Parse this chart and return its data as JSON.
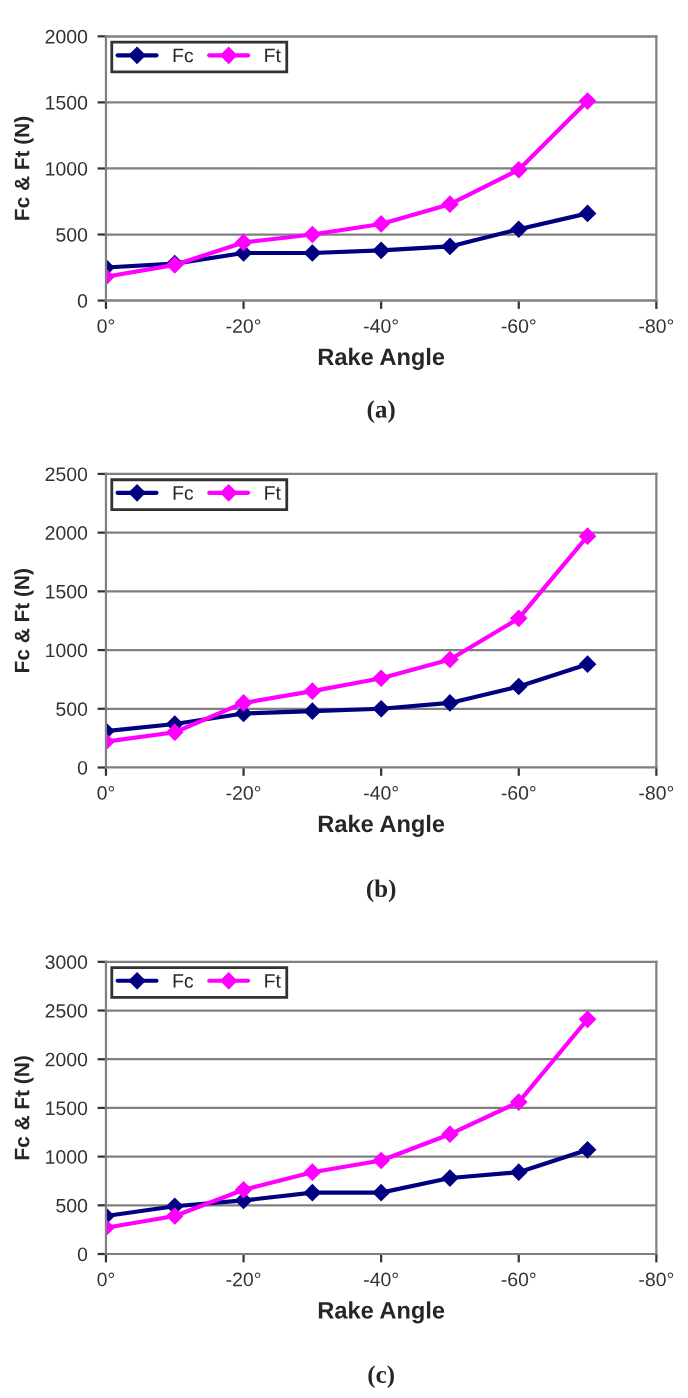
{
  "chart_data": [
    {
      "type": "line",
      "xlabel": "Rake Angle",
      "ylabel": "Fc & Ft (N)",
      "annotations": [
        "(a)"
      ],
      "x": [
        0,
        -10,
        -20,
        -30,
        -40,
        -50,
        -60,
        -70
      ],
      "series": [
        {
          "name": "Fc",
          "color": "#000080",
          "values": [
            250,
            280,
            360,
            360,
            380,
            410,
            540,
            660
          ]
        },
        {
          "name": "Ft",
          "color": "#ff00ff",
          "values": [
            180,
            270,
            440,
            500,
            580,
            730,
            990,
            1510
          ]
        }
      ],
      "xlim": [
        0,
        -80
      ],
      "xticks": [
        {
          "value": 0,
          "label": "0°"
        },
        {
          "value": -20,
          "label": "-20°"
        },
        {
          "value": -40,
          "label": "-40°"
        },
        {
          "value": -60,
          "label": "-60°"
        },
        {
          "value": -80,
          "label": "-80°"
        }
      ],
      "ylim": [
        0,
        2000
      ],
      "yticks": [
        0,
        500,
        1000,
        1500,
        2000
      ],
      "grid": "y",
      "legend": "top left",
      "marker": "diamond",
      "line_style": "solid"
    },
    {
      "type": "line",
      "xlabel": "Rake Angle",
      "ylabel": "Fc & Ft (N)",
      "annotations": [
        "(b)"
      ],
      "x": [
        0,
        -10,
        -20,
        -30,
        -40,
        -50,
        -60,
        -70
      ],
      "series": [
        {
          "name": "Fc",
          "color": "#000080",
          "values": [
            310,
            370,
            460,
            480,
            500,
            550,
            690,
            880
          ]
        },
        {
          "name": "Ft",
          "color": "#ff00ff",
          "values": [
            220,
            300,
            550,
            650,
            760,
            920,
            1270,
            1970
          ]
        }
      ],
      "xlim": [
        0,
        -80
      ],
      "xticks": [
        {
          "value": 0,
          "label": "0°"
        },
        {
          "value": -20,
          "label": "-20°"
        },
        {
          "value": -40,
          "label": "-40°"
        },
        {
          "value": -60,
          "label": "-60°"
        },
        {
          "value": -80,
          "label": "-80°"
        }
      ],
      "ylim": [
        0,
        2500
      ],
      "yticks": [
        0,
        500,
        1000,
        1500,
        2000,
        2500
      ],
      "grid": "y",
      "legend": "top left",
      "marker": "diamond",
      "line_style": "solid"
    },
    {
      "type": "line",
      "xlabel": "Rake Angle",
      "ylabel": "Fc & Ft (N)",
      "annotations": [
        "(c)"
      ],
      "x": [
        0,
        -10,
        -20,
        -30,
        -40,
        -50,
        -60,
        -70
      ],
      "series": [
        {
          "name": "Fc",
          "color": "#000080",
          "values": [
            390,
            490,
            550,
            630,
            630,
            780,
            840,
            1070
          ]
        },
        {
          "name": "Ft",
          "color": "#ff00ff",
          "values": [
            270,
            390,
            660,
            840,
            960,
            1230,
            1560,
            2410
          ]
        }
      ],
      "xlim": [
        0,
        -80
      ],
      "xticks": [
        {
          "value": 0,
          "label": "0°"
        },
        {
          "value": -20,
          "label": "-20°"
        },
        {
          "value": -40,
          "label": "-40°"
        },
        {
          "value": -60,
          "label": "-60°"
        },
        {
          "value": -80,
          "label": "-80°"
        }
      ],
      "ylim": [
        0,
        3000
      ],
      "yticks": [
        0,
        500,
        1000,
        1500,
        2000,
        2500,
        3000
      ],
      "grid": "y",
      "legend": "top left",
      "marker": "diamond",
      "line_style": "solid"
    }
  ]
}
